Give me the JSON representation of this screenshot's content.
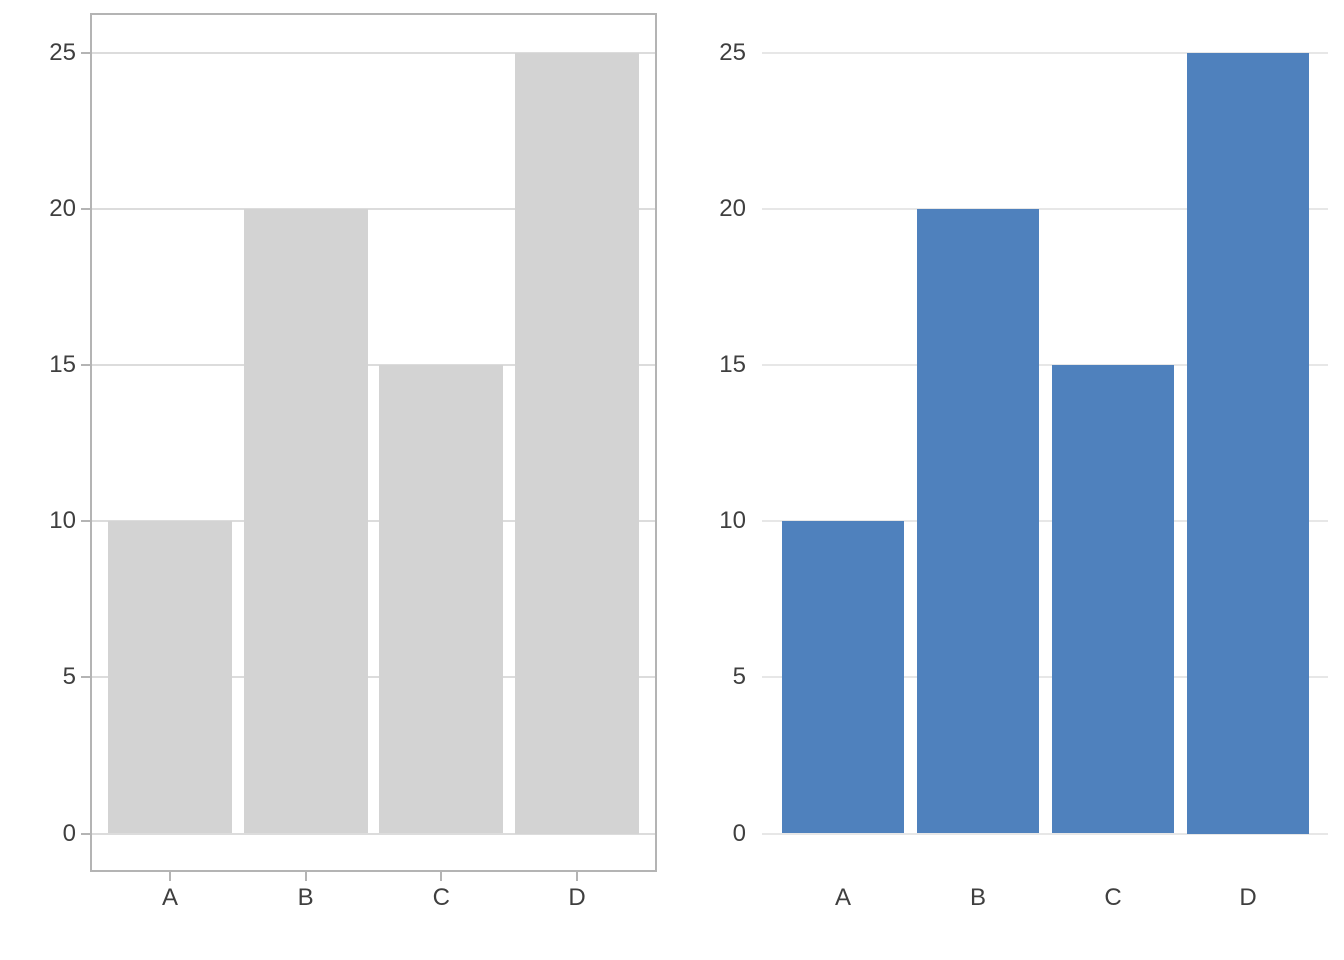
{
  "figure": {
    "background": "#ffffff",
    "text_color": "#3f3f3f"
  },
  "chart_data": [
    {
      "type": "bar",
      "title": "",
      "xlabel": "",
      "ylabel": "",
      "categories": [
        "A",
        "B",
        "C",
        "D"
      ],
      "values": [
        10,
        20,
        15,
        25
      ],
      "ylim": [
        0,
        25
      ],
      "yticks": [
        0,
        5,
        10,
        15,
        20,
        25
      ],
      "grid": "horizontal",
      "legend": "none",
      "style": {
        "bar_color": "#d3d3d3",
        "grid_color": "#dcdcdc",
        "frame_color": "#b4b4b4",
        "panel_border": true,
        "tick_marks": true
      }
    },
    {
      "type": "bar",
      "title": "",
      "xlabel": "",
      "ylabel": "",
      "categories": [
        "A",
        "B",
        "C",
        "D"
      ],
      "values": [
        10,
        20,
        15,
        25
      ],
      "ylim": [
        0,
        25
      ],
      "yticks": [
        0,
        5,
        10,
        15,
        20,
        25
      ],
      "grid": "horizontal",
      "legend": "none",
      "style": {
        "bar_color": "#4f81bd",
        "grid_color": "#e7e7e7",
        "frame_color": "none",
        "panel_border": false,
        "tick_marks": false
      }
    }
  ]
}
